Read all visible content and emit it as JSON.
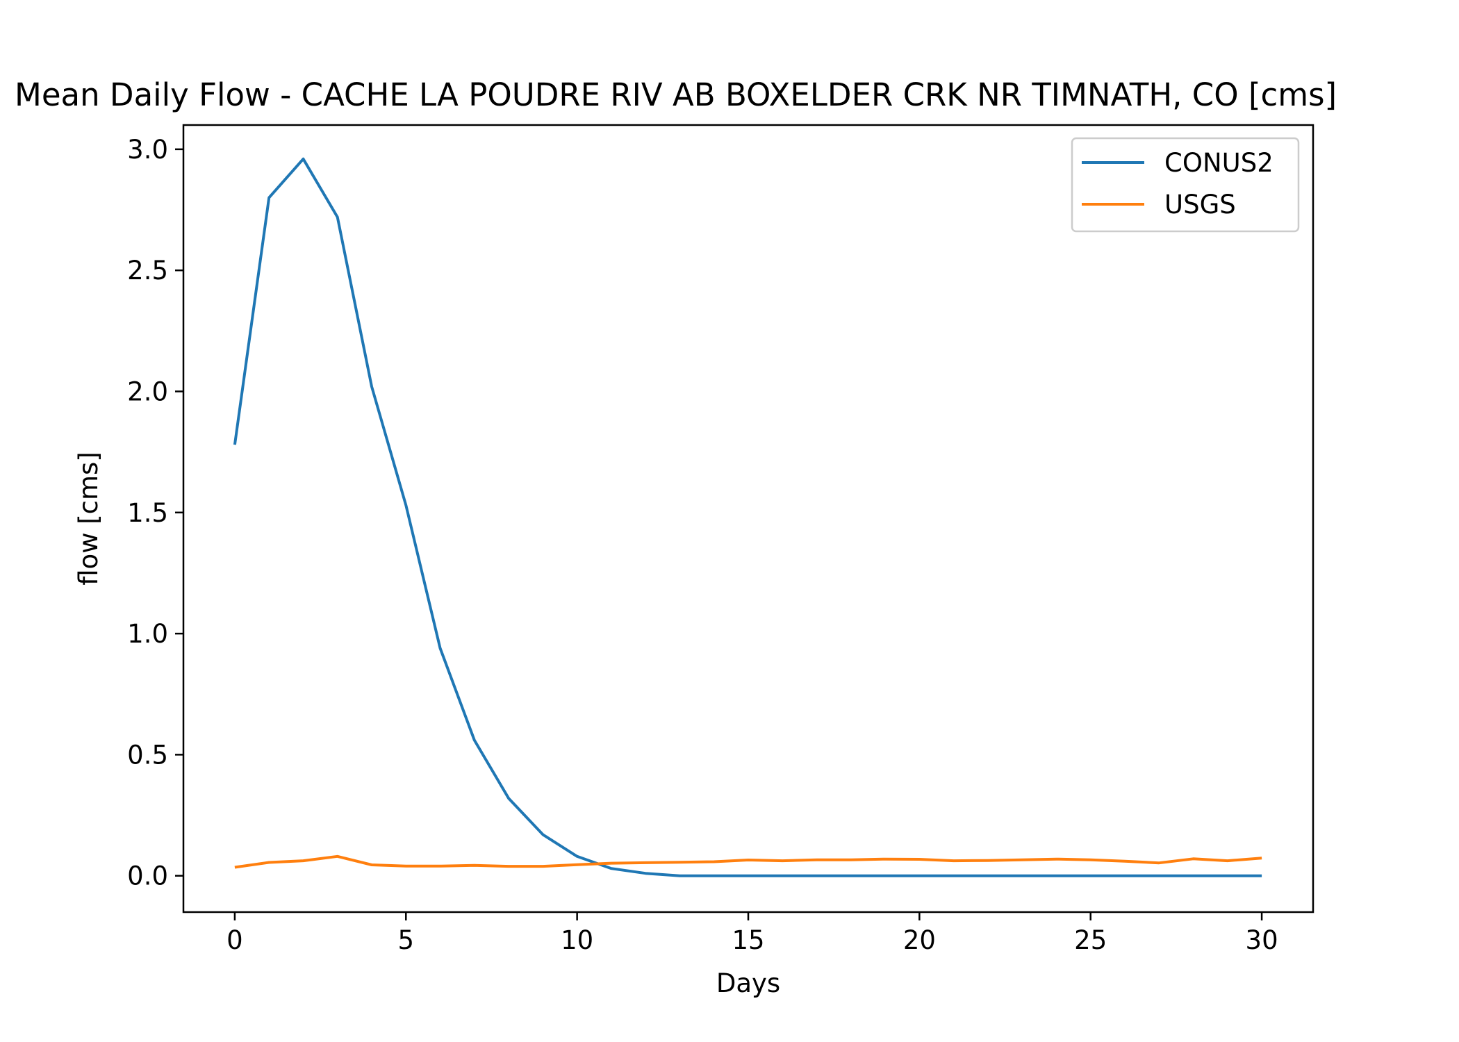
{
  "chart_data": {
    "type": "line",
    "title": "Mean Daily Flow - CACHE LA POUDRE RIV AB BOXELDER CRK NR TIMNATH, CO [cms]",
    "xlabel": "Days",
    "ylabel": "flow [cms]",
    "xlim": [
      -1.5,
      31.5
    ],
    "ylim": [
      -0.15,
      3.1
    ],
    "xticks": [
      0,
      5,
      10,
      15,
      20,
      25,
      30
    ],
    "yticks": [
      0.0,
      0.5,
      1.0,
      1.5,
      2.0,
      2.5,
      3.0
    ],
    "xtick_labels": [
      "0",
      "5",
      "10",
      "15",
      "20",
      "25",
      "30"
    ],
    "ytick_labels": [
      "0.0",
      "0.5",
      "1.0",
      "1.5",
      "2.0",
      "2.5",
      "3.0"
    ],
    "grid": false,
    "legend_position": "top-right",
    "x": [
      0,
      1,
      2,
      3,
      4,
      5,
      6,
      7,
      8,
      9,
      10,
      11,
      12,
      13,
      14,
      15,
      16,
      17,
      18,
      19,
      20,
      21,
      22,
      23,
      24,
      25,
      26,
      27,
      28,
      29,
      30
    ],
    "series": [
      {
        "name": "CONUS2",
        "color": "#1f77b4",
        "values": [
          1.78,
          2.8,
          2.96,
          2.72,
          2.02,
          1.53,
          0.94,
          0.56,
          0.32,
          0.17,
          0.08,
          0.03,
          0.01,
          0.0,
          0.0,
          0.0,
          0.0,
          0.0,
          0.0,
          0.0,
          0.0,
          0.0,
          0.0,
          0.0,
          0.0,
          0.0,
          0.0,
          0.0,
          0.0,
          0.0,
          0.0
        ]
      },
      {
        "name": "USGS",
        "color": "#ff7f0e",
        "values": [
          0.035,
          0.055,
          0.062,
          0.08,
          0.045,
          0.04,
          0.04,
          0.043,
          0.039,
          0.039,
          0.046,
          0.052,
          0.054,
          0.056,
          0.058,
          0.065,
          0.062,
          0.066,
          0.066,
          0.069,
          0.068,
          0.062,
          0.063,
          0.066,
          0.069,
          0.066,
          0.06,
          0.053,
          0.07,
          0.062,
          0.073
        ]
      }
    ]
  }
}
